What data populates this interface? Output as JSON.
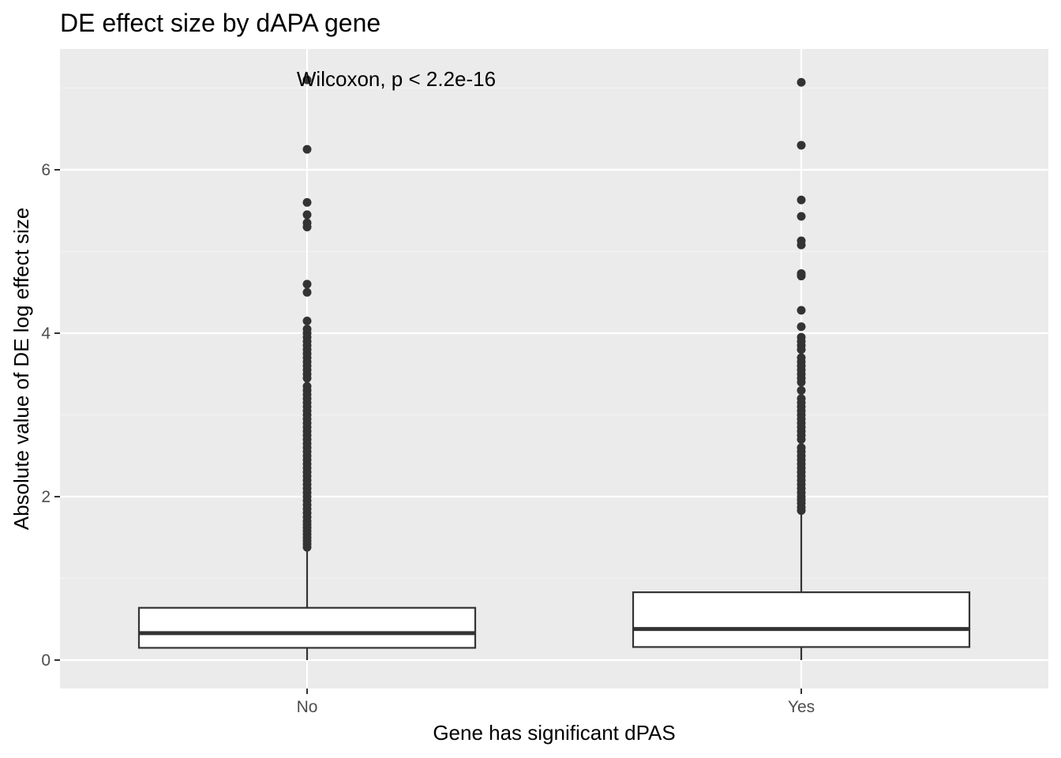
{
  "chart_data": {
    "type": "box",
    "title": "DE effect size by dAPA gene",
    "xlabel": "Gene has significant dPAS",
    "ylabel": "Absolute value of DE log effect size",
    "categories": [
      "No",
      "Yes"
    ],
    "y_ticks": [
      0,
      2,
      4,
      6
    ],
    "y_tick_labels": [
      "0",
      "2",
      "4",
      "6"
    ],
    "ylim": [
      -0.36,
      7.5
    ],
    "grid": true,
    "annotation": "Wilcoxon, p < 2.2e-16",
    "boxes": [
      {
        "category": "No",
        "whisker_low": 0.0,
        "q1": 0.15,
        "median": 0.33,
        "q3": 0.64,
        "whisker_high": 1.37,
        "outliers": [
          1.38,
          1.42,
          1.46,
          1.5,
          1.54,
          1.58,
          1.62,
          1.66,
          1.7,
          1.75,
          1.8,
          1.85,
          1.9,
          1.95,
          2.0,
          2.05,
          2.1,
          2.15,
          2.2,
          2.25,
          2.3,
          2.35,
          2.4,
          2.45,
          2.5,
          2.55,
          2.6,
          2.65,
          2.7,
          2.75,
          2.8,
          2.85,
          2.9,
          2.95,
          3.0,
          3.05,
          3.1,
          3.15,
          3.2,
          3.25,
          3.3,
          3.35,
          3.45,
          3.5,
          3.55,
          3.6,
          3.65,
          3.7,
          3.75,
          3.8,
          3.85,
          3.9,
          3.95,
          4.0,
          4.05,
          4.15,
          4.5,
          4.6,
          5.3,
          5.35,
          5.45,
          5.6,
          6.25,
          7.1
        ]
      },
      {
        "category": "Yes",
        "whisker_low": 0.0,
        "q1": 0.16,
        "median": 0.38,
        "q3": 0.83,
        "whisker_high": 1.82,
        "outliers": [
          1.83,
          1.87,
          1.92,
          1.96,
          2.0,
          2.05,
          2.1,
          2.15,
          2.2,
          2.25,
          2.3,
          2.35,
          2.4,
          2.45,
          2.5,
          2.55,
          2.6,
          2.7,
          2.75,
          2.8,
          2.85,
          2.9,
          2.95,
          3.0,
          3.05,
          3.1,
          3.15,
          3.2,
          3.3,
          3.4,
          3.45,
          3.5,
          3.55,
          3.6,
          3.65,
          3.7,
          3.8,
          3.85,
          3.9,
          3.95,
          4.08,
          4.28,
          4.7,
          4.73,
          5.08,
          5.13,
          5.43,
          5.63,
          6.3,
          7.07
        ]
      }
    ],
    "colors": {
      "panel_background": "#ebebeb",
      "grid_major": "#ffffff",
      "grid_minor": "#f2f2f2",
      "box_fill": "#ffffff",
      "box_stroke": "#333333",
      "outlier": "#333333",
      "tick": "#333333",
      "tick_label": "#4d4d4d"
    }
  }
}
